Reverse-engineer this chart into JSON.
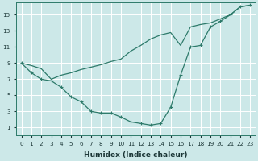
{
  "xlabel": "Humidex (Indice chaleur)",
  "bg_color": "#cce8e8",
  "grid_color": "#ffffff",
  "line_color": "#2d7a6a",
  "xlim": [
    -0.5,
    23.5
  ],
  "ylim": [
    0,
    16.5
  ],
  "xticks": [
    0,
    1,
    2,
    3,
    4,
    5,
    6,
    7,
    8,
    9,
    10,
    11,
    12,
    13,
    14,
    15,
    16,
    17,
    18,
    19,
    20,
    21,
    22,
    23
  ],
  "yticks": [
    1,
    3,
    5,
    7,
    9,
    11,
    13,
    15
  ],
  "x_line1": [
    0,
    1,
    2,
    3,
    4,
    5,
    6,
    7,
    8,
    9,
    10,
    11,
    12,
    13,
    14,
    15,
    16,
    17,
    18,
    19,
    20,
    21,
    22,
    23
  ],
  "y_line1": [
    9.0,
    7.8,
    7.0,
    6.8,
    6.0,
    4.8,
    4.2,
    3.0,
    2.8,
    2.8,
    2.3,
    1.7,
    1.5,
    1.3,
    1.5,
    3.5,
    7.5,
    11.0,
    11.2,
    13.5,
    14.2,
    15.0,
    16.0,
    16.2
  ],
  "x_line2": [
    0,
    1,
    2,
    3,
    4,
    5,
    6,
    7,
    8,
    9,
    10,
    11,
    12,
    13,
    14,
    15,
    16,
    17,
    18,
    19,
    20,
    21,
    22,
    23
  ],
  "y_line2": [
    9.0,
    8.7,
    8.3,
    7.0,
    7.5,
    7.8,
    8.2,
    8.5,
    8.8,
    9.2,
    9.5,
    10.5,
    11.2,
    12.0,
    12.5,
    12.8,
    11.2,
    13.5,
    13.8,
    14.0,
    14.5,
    15.0,
    16.0,
    16.2
  ],
  "xlabel_fontsize": 6.5,
  "tick_fontsize": 5.2
}
